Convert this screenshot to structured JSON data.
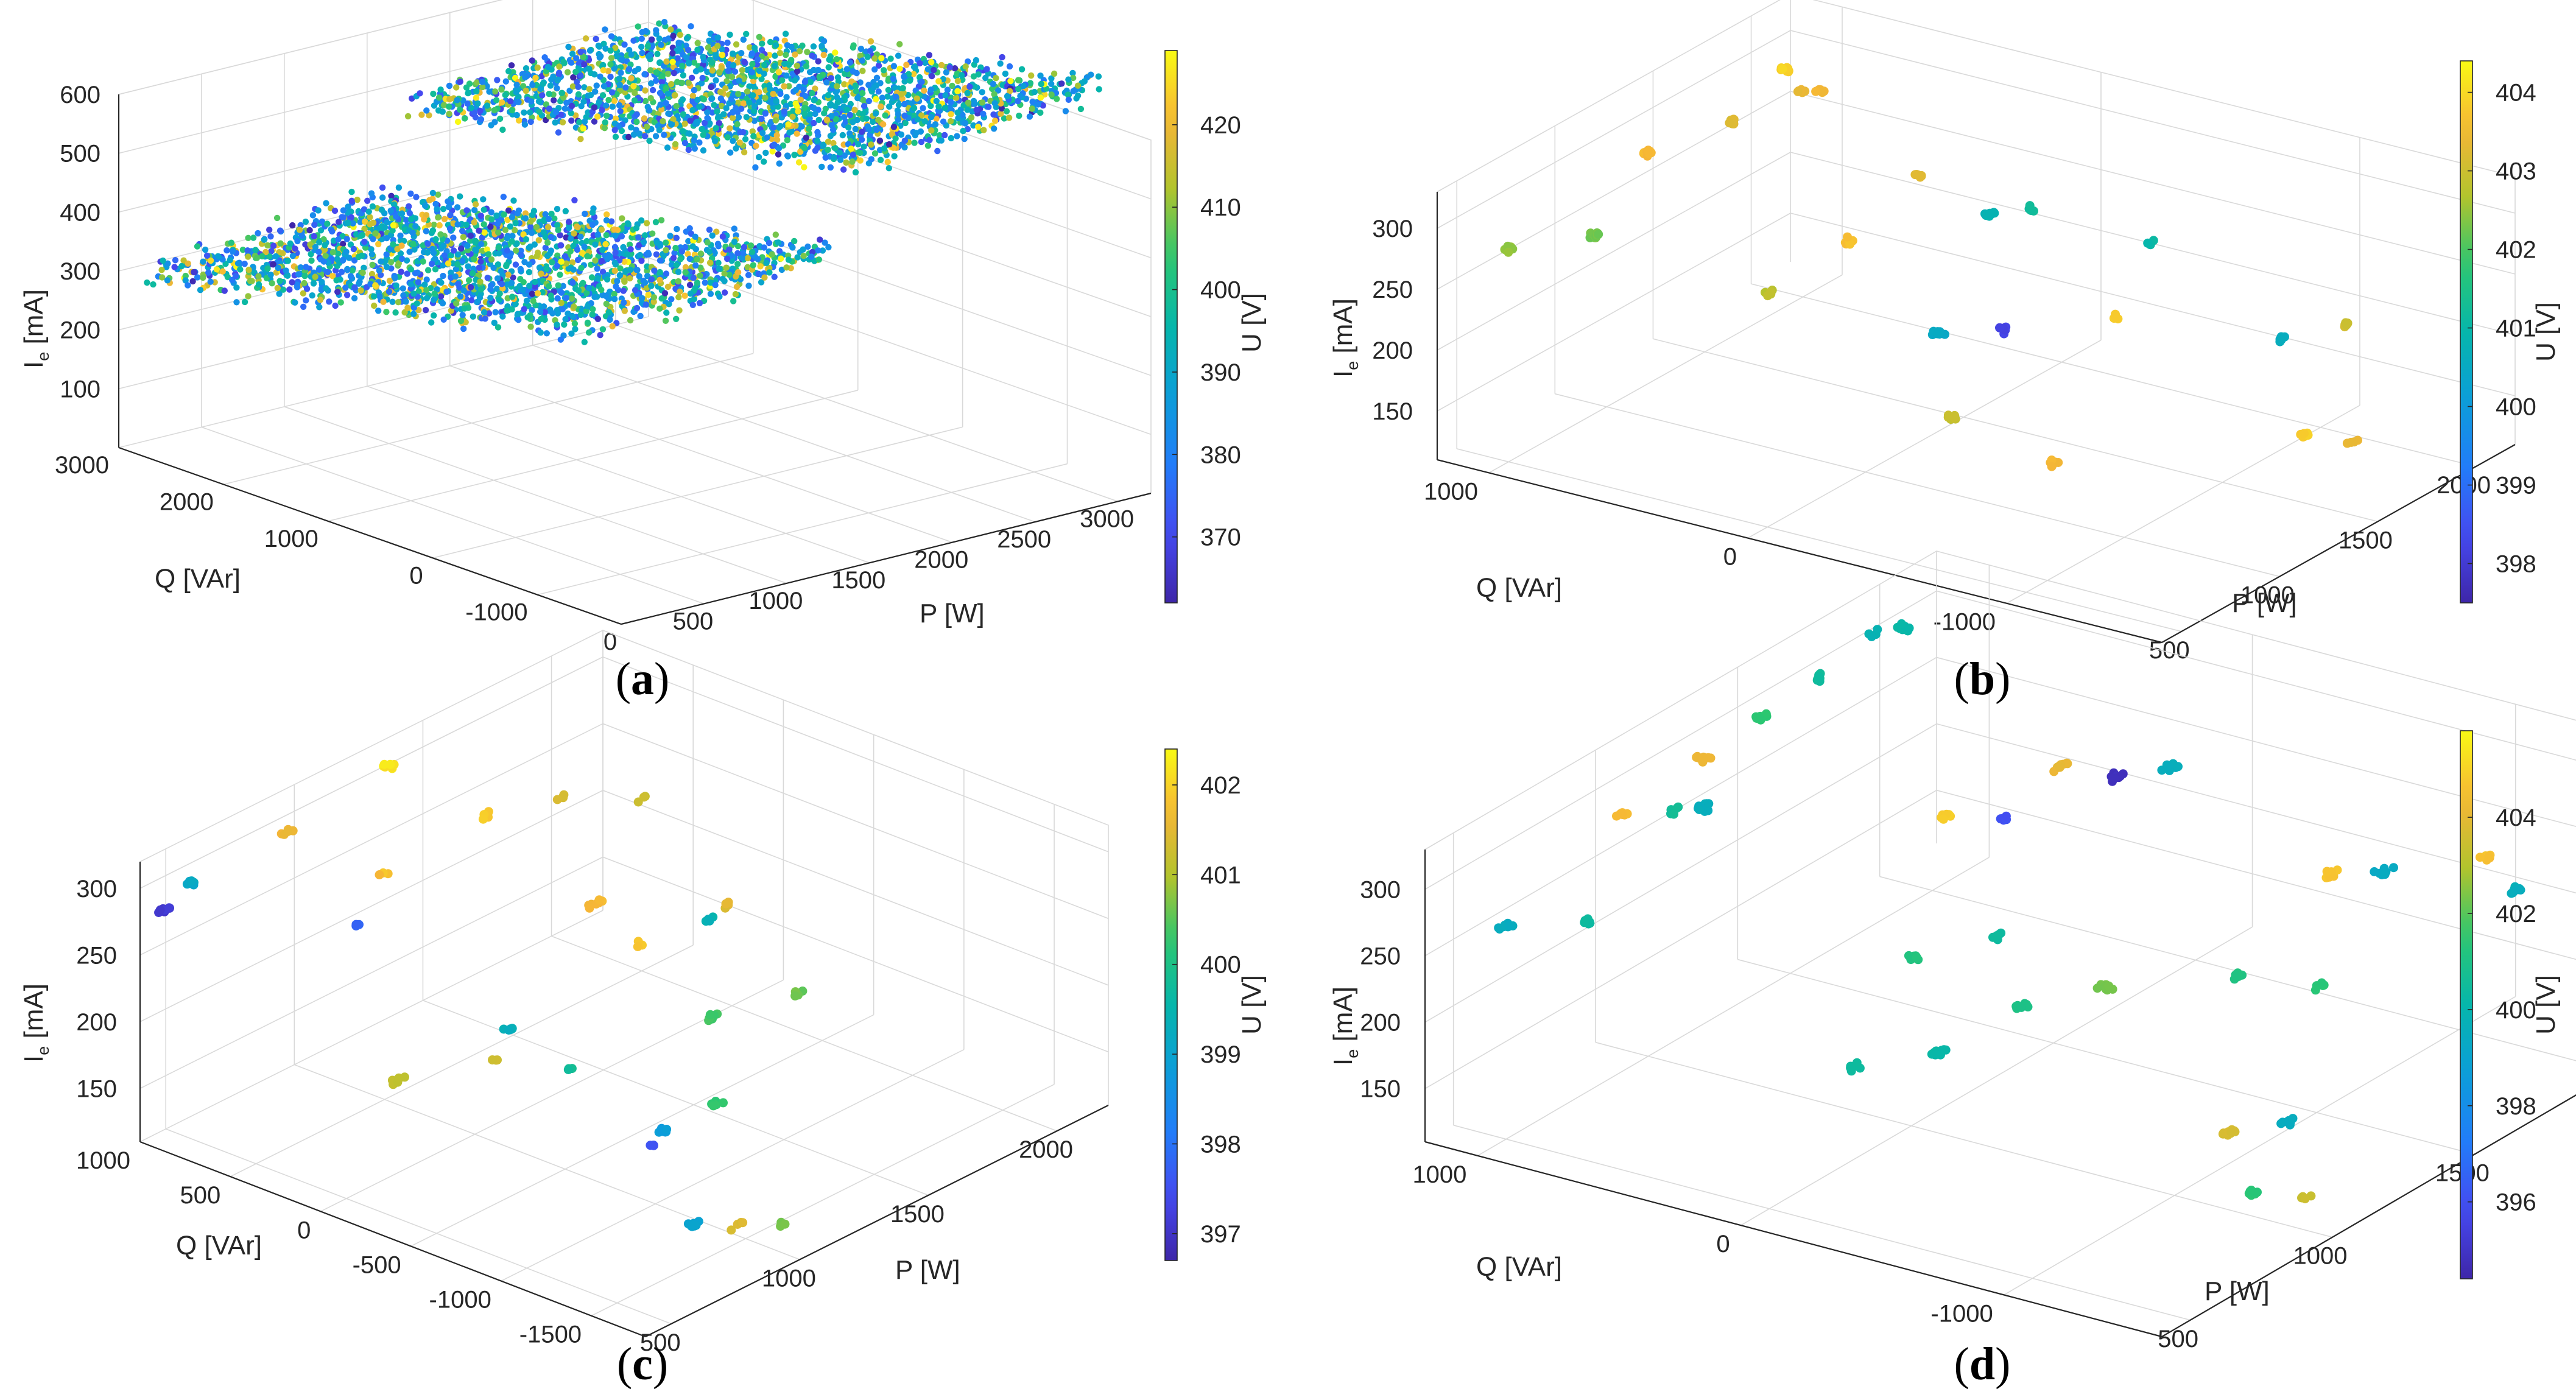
{
  "figure": {
    "panels": [
      {
        "label_open": "(",
        "label_letter": "a",
        "label_close": ")"
      },
      {
        "label_open": "(",
        "label_letter": "b",
        "label_close": ")"
      },
      {
        "label_open": "(",
        "label_letter": "c",
        "label_close": ")"
      },
      {
        "label_open": "(",
        "label_letter": "d",
        "label_close": ")"
      }
    ]
  },
  "chart_data": [
    {
      "type": "scatter",
      "panel": "a",
      "projection": "3d",
      "title": "",
      "xlabel": "P [W]",
      "ylabel": "Q [VAr]",
      "zlabel_main": "I",
      "zlabel_sub": "e",
      "zlabel_unit": " [mA]",
      "colorbar_label": "U [V]",
      "x_ticks": [
        "0",
        "500",
        "1000",
        "1500",
        "2000",
        "2500",
        "3000"
      ],
      "y_ticks": [
        "-1000",
        "0",
        "1000",
        "2000",
        "3000"
      ],
      "z_ticks": [
        "100",
        "200",
        "300",
        "400",
        "500",
        "600"
      ],
      "colorbar_ticks": [
        "370",
        "380",
        "390",
        "400",
        "410",
        "420"
      ],
      "xlim": [
        0,
        3200
      ],
      "ylim": [
        -1800,
        3000
      ],
      "zlim": [
        0,
        600
      ],
      "clim": [
        362,
        429
      ],
      "grid": true,
      "description_note": "dense point cloud of roughly 4000 samples forming two bands, I_e rising with P",
      "bands": [
        {
          "p_range": [
            0,
            1500
          ],
          "q_range": [
            -1500,
            2800
          ],
          "i_at_p0": 420,
          "i_slope_per_kw": -40
        },
        {
          "p_range": [
            1600,
            3100
          ],
          "q_range": [
            -1500,
            2800
          ],
          "i_at_p0": 560,
          "i_slope_per_kw": -40
        }
      ],
      "clusters": []
    },
    {
      "type": "scatter",
      "panel": "b",
      "projection": "3d",
      "title": "",
      "xlabel": "P [W]",
      "ylabel": "Q [VAr]",
      "zlabel_main": "I",
      "zlabel_sub": "e",
      "zlabel_unit": " [mA]",
      "colorbar_label": "U [V]",
      "x_ticks": [
        "500",
        "1000",
        "1500",
        "2000"
      ],
      "y_ticks": [
        "-1000",
        "0",
        "1000"
      ],
      "z_ticks": [
        "150",
        "200",
        "250",
        "300"
      ],
      "colorbar_ticks": [
        "398",
        "399",
        "400",
        "401",
        "402",
        "403",
        "404"
      ],
      "xlim": [
        400,
        2200
      ],
      "ylim": [
        -1600,
        1200
      ],
      "zlim": [
        110,
        330
      ],
      "clim": [
        397.5,
        404.4
      ],
      "grid": true,
      "clusters": [
        {
          "p": 500,
          "q": 1000,
          "i": 285,
          "u": 402.5,
          "n": 10
        },
        {
          "p": 800,
          "q": 900,
          "i": 275,
          "u": 402.3,
          "n": 12
        },
        {
          "p": 1200,
          "q": 1000,
          "i": 300,
          "u": 403.6,
          "n": 10
        },
        {
          "p": 1500,
          "q": 900,
          "i": 305,
          "u": 403.2,
          "n": 8
        },
        {
          "p": 1900,
          "q": 1000,
          "i": 305,
          "u": 403.9,
          "n": 8
        },
        {
          "p": 2000,
          "q": 1000,
          "i": 280,
          "u": 403.4,
          "n": 6
        },
        {
          "p": 2100,
          "q": 1000,
          "i": 270,
          "u": 403.5,
          "n": 6
        },
        {
          "p": 1700,
          "q": 600,
          "i": 205,
          "u": 403.7,
          "n": 8
        },
        {
          "p": 1800,
          "q": 400,
          "i": 260,
          "u": 403.2,
          "n": 6
        },
        {
          "p": 1900,
          "q": 200,
          "i": 230,
          "u": 400.8,
          "n": 8
        },
        {
          "p": 2100,
          "q": 200,
          "i": 215,
          "u": 401.2,
          "n": 5
        },
        {
          "p": 2200,
          "q": -200,
          "i": 200,
          "u": 401.0,
          "n": 4
        },
        {
          "p": 900,
          "q": 300,
          "i": 250,
          "u": 402.8,
          "n": 5
        },
        {
          "p": 1100,
          "q": -200,
          "i": 225,
          "u": 400.5,
          "n": 10
        },
        {
          "p": 1300,
          "q": -300,
          "i": 215,
          "u": 398.2,
          "n": 6
        },
        {
          "p": 900,
          "q": -400,
          "i": 185,
          "u": 403.0,
          "n": 6
        },
        {
          "p": 900,
          "q": -800,
          "i": 170,
          "u": 403.5,
          "n": 8
        },
        {
          "p": 1600,
          "q": -500,
          "i": 210,
          "u": 403.8,
          "n": 6
        },
        {
          "p": 1800,
          "q": -1000,
          "i": 200,
          "u": 400.6,
          "n": 6
        },
        {
          "p": 2000,
          "q": -1100,
          "i": 200,
          "u": 403.0,
          "n": 6
        },
        {
          "p": 1400,
          "q": -1400,
          "i": 180,
          "u": 403.8,
          "n": 8
        },
        {
          "p": 1500,
          "q": -1500,
          "i": 170,
          "u": 403.3,
          "n": 4
        }
      ]
    },
    {
      "type": "scatter",
      "panel": "c",
      "projection": "3d",
      "title": "",
      "xlabel": "P [W]",
      "ylabel": "Q [VAr]",
      "zlabel_main": "I",
      "zlabel_sub": "e",
      "zlabel_unit": " [mA]",
      "colorbar_label": "U [V]",
      "x_ticks": [
        "500",
        "1000",
        "1500",
        "2000"
      ],
      "y_ticks": [
        "-1500",
        "-1000",
        "-500",
        "0",
        "500",
        "1000"
      ],
      "z_ticks": [
        "150",
        "200",
        "250",
        "300"
      ],
      "colorbar_ticks": [
        "397",
        "398",
        "399",
        "400",
        "401",
        "402"
      ],
      "xlim": [
        400,
        2200
      ],
      "ylim": [
        -1800,
        1000
      ],
      "zlim": [
        110,
        320
      ],
      "clim": [
        396.7,
        402.4
      ],
      "grid": true,
      "clusters": [
        {
          "p": 500,
          "q": 1000,
          "i": 275,
          "u": 397.1,
          "n": 8
        },
        {
          "p": 600,
          "q": 1000,
          "i": 285,
          "u": 399.2,
          "n": 6
        },
        {
          "p": 900,
          "q": 900,
          "i": 300,
          "u": 401.6,
          "n": 6
        },
        {
          "p": 1300,
          "q": 900,
          "i": 310,
          "u": 402.2,
          "n": 8
        },
        {
          "p": 1000,
          "q": 500,
          "i": 280,
          "u": 401.8,
          "n": 3
        },
        {
          "p": 900,
          "q": 500,
          "i": 250,
          "u": 397.8,
          "n": 3
        },
        {
          "p": 1400,
          "q": 500,
          "i": 285,
          "u": 401.9,
          "n": 6
        },
        {
          "p": 1700,
          "q": 500,
          "i": 270,
          "u": 401.3,
          "n": 4
        },
        {
          "p": 2000,
          "q": 500,
          "i": 240,
          "u": 401.2,
          "n": 3
        },
        {
          "p": 700,
          "q": 0,
          "i": 180,
          "u": 401.1,
          "n": 6
        },
        {
          "p": 1000,
          "q": -100,
          "i": 170,
          "u": 401.2,
          "n": 3
        },
        {
          "p": 1000,
          "q": -200,
          "i": 200,
          "u": 399.3,
          "n": 6
        },
        {
          "p": 1400,
          "q": -100,
          "i": 250,
          "u": 401.7,
          "n": 8
        },
        {
          "p": 1500,
          "q": -200,
          "i": 215,
          "u": 401.9,
          "n": 3
        },
        {
          "p": 1700,
          "q": -300,
          "i": 220,
          "u": 399.4,
          "n": 4
        },
        {
          "p": 1900,
          "q": -100,
          "i": 200,
          "u": 401.5,
          "n": 4
        },
        {
          "p": 1100,
          "q": -400,
          "i": 170,
          "u": 399.8,
          "n": 3
        },
        {
          "p": 1500,
          "q": -600,
          "i": 180,
          "u": 400.4,
          "n": 6
        },
        {
          "p": 1700,
          "q": -800,
          "i": 190,
          "u": 400.6,
          "n": 4
        },
        {
          "p": 1100,
          "q": -900,
          "i": 150,
          "u": 398.8,
          "n": 8
        },
        {
          "p": 1300,
          "q": -900,
          "i": 150,
          "u": 400.3,
          "n": 6
        },
        {
          "p": 1000,
          "q": -1000,
          "i": 155,
          "u": 397.6,
          "n": 3
        },
        {
          "p": 800,
          "q": -1500,
          "i": 140,
          "u": 399.0,
          "n": 8
        },
        {
          "p": 900,
          "q": -1600,
          "i": 135,
          "u": 401.4,
          "n": 4
        },
        {
          "p": 1000,
          "q": -1700,
          "i": 130,
          "u": 400.7,
          "n": 3
        }
      ]
    },
    {
      "type": "scatter",
      "panel": "d",
      "projection": "3d",
      "title": "",
      "xlabel": "P [W]",
      "ylabel": "Q [VAr]",
      "zlabel_main": "I",
      "zlabel_sub": "e",
      "zlabel_unit": " [mA]",
      "colorbar_label": "U [V]",
      "x_ticks": [
        "500",
        "1000",
        "1500",
        "2000"
      ],
      "y_ticks": [
        "-1000",
        "0",
        "1000"
      ],
      "z_ticks": [
        "150",
        "200",
        "250",
        "300"
      ],
      "colorbar_ticks": [
        "396",
        "398",
        "400",
        "402",
        "404"
      ],
      "xlim": [
        400,
        2200
      ],
      "ylim": [
        -1600,
        1200
      ],
      "zlim": [
        110,
        330
      ],
      "clim": [
        394.4,
        405.8
      ],
      "grid": true,
      "clusters": [
        {
          "p": 500,
          "q": 1000,
          "i": 270,
          "u": 399.5,
          "n": 8
        },
        {
          "p": 700,
          "q": 900,
          "i": 255,
          "u": 400.4,
          "n": 8
        },
        {
          "p": 900,
          "q": 1000,
          "i": 305,
          "u": 404.5,
          "n": 8
        },
        {
          "p": 1000,
          "q": 900,
          "i": 300,
          "u": 400.6,
          "n": 10
        },
        {
          "p": 1100,
          "q": 900,
          "i": 290,
          "u": 399.6,
          "n": 12
        },
        {
          "p": 1200,
          "q": 1000,
          "i": 310,
          "u": 404.2,
          "n": 8
        },
        {
          "p": 1400,
          "q": 1000,
          "i": 315,
          "u": 401.5,
          "n": 8
        },
        {
          "p": 1600,
          "q": 1000,
          "i": 320,
          "u": 400.5,
          "n": 8
        },
        {
          "p": 1800,
          "q": 1000,
          "i": 330,
          "u": 399.9,
          "n": 4
        },
        {
          "p": 1900,
          "q": 1000,
          "i": 320,
          "u": 400.2,
          "n": 8
        },
        {
          "p": 1500,
          "q": 400,
          "i": 260,
          "u": 404.9,
          "n": 8
        },
        {
          "p": 1600,
          "q": 300,
          "i": 250,
          "u": 396.0,
          "n": 6
        },
        {
          "p": 1800,
          "q": 300,
          "i": 265,
          "u": 404.1,
          "n": 10
        },
        {
          "p": 1900,
          "q": 200,
          "i": 250,
          "u": 394.8,
          "n": 10
        },
        {
          "p": 2000,
          "q": 100,
          "i": 250,
          "u": 399.6,
          "n": 8
        },
        {
          "p": 1100,
          "q": 100,
          "i": 220,
          "u": 401.2,
          "n": 8
        },
        {
          "p": 1300,
          "q": 0,
          "i": 215,
          "u": 400.4,
          "n": 6
        },
        {
          "p": 800,
          "q": 0,
          "i": 180,
          "u": 400.4,
          "n": 8
        },
        {
          "p": 1000,
          "q": -100,
          "i": 170,
          "u": 400.2,
          "n": 14
        },
        {
          "p": 1200,
          "q": -200,
          "i": 185,
          "u": 401.0,
          "n": 8
        },
        {
          "p": 1400,
          "q": -300,
          "i": 180,
          "u": 402.3,
          "n": 12
        },
        {
          "p": 1600,
          "q": -600,
          "i": 180,
          "u": 401.1,
          "n": 6
        },
        {
          "p": 1700,
          "q": -800,
          "i": 170,
          "u": 401.4,
          "n": 6
        },
        {
          "p": 2000,
          "q": -500,
          "i": 200,
          "u": 404.7,
          "n": 8
        },
        {
          "p": 2100,
          "q": -600,
          "i": 195,
          "u": 399.4,
          "n": 8
        },
        {
          "p": 2200,
          "q": -900,
          "i": 210,
          "u": 404.6,
          "n": 6
        },
        {
          "p": 2200,
          "q": -1000,
          "i": 190,
          "u": 399.6,
          "n": 8
        },
        {
          "p": 1100,
          "q": -1100,
          "i": 150,
          "u": 403.7,
          "n": 10
        },
        {
          "p": 1200,
          "q": -1200,
          "i": 150,
          "u": 399.5,
          "n": 8
        },
        {
          "p": 900,
          "q": -1400,
          "i": 145,
          "u": 401.4,
          "n": 8
        },
        {
          "p": 1000,
          "q": -1500,
          "i": 135,
          "u": 403.4,
          "n": 4
        }
      ]
    }
  ]
}
